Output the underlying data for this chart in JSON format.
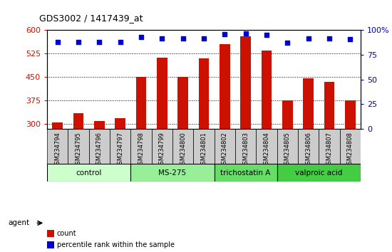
{
  "title": "GDS3002 / 1417439_at",
  "samples": [
    "GSM234794",
    "GSM234795",
    "GSM234796",
    "GSM234797",
    "GSM234798",
    "GSM234799",
    "GSM234800",
    "GSM234801",
    "GSM234802",
    "GSM234803",
    "GSM234804",
    "GSM234805",
    "GSM234806",
    "GSM234807",
    "GSM234808"
  ],
  "counts": [
    305,
    335,
    310,
    320,
    450,
    513,
    450,
    510,
    555,
    580,
    535,
    375,
    447,
    435,
    375
  ],
  "percentiles": [
    88,
    88,
    88,
    88,
    93,
    92,
    92,
    92,
    96,
    97,
    95,
    87,
    92,
    92,
    91
  ],
  "groups": [
    {
      "label": "control",
      "start": 0,
      "end": 4,
      "color": "#ccffcc"
    },
    {
      "label": "MS-275",
      "start": 4,
      "end": 8,
      "color": "#99ee99"
    },
    {
      "label": "trichostatin A",
      "start": 8,
      "end": 11,
      "color": "#66dd66"
    },
    {
      "label": "valproic acid",
      "start": 11,
      "end": 15,
      "color": "#44cc44"
    }
  ],
  "ylim_left": [
    285,
    600
  ],
  "ylim_right": [
    0,
    100
  ],
  "yticks_left": [
    300,
    375,
    450,
    525,
    600
  ],
  "yticks_right": [
    0,
    25,
    50,
    75,
    100
  ],
  "bar_color": "#cc1100",
  "dot_color": "#0000cc",
  "bar_width": 0.5,
  "background_color": "#ffffff",
  "tick_bg_color": "#cccccc",
  "xlabel_color": "#cc1100",
  "ylabel_right_color": "#0000cc",
  "legend_items": [
    {
      "label": "count",
      "color": "#cc1100"
    },
    {
      "label": "percentile rank within the sample",
      "color": "#0000cc"
    }
  ]
}
